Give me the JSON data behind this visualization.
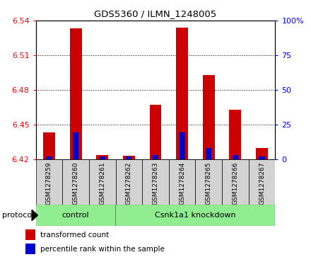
{
  "title": "GDS5360 / ILMN_1248005",
  "samples": [
    "GSM1278259",
    "GSM1278260",
    "GSM1278261",
    "GSM1278262",
    "GSM1278263",
    "GSM1278264",
    "GSM1278265",
    "GSM1278266",
    "GSM1278267"
  ],
  "red_values": [
    6.443,
    6.533,
    6.424,
    6.423,
    6.467,
    6.534,
    6.493,
    6.463,
    6.43
  ],
  "blue_values": [
    6.4225,
    6.443,
    6.4225,
    6.4225,
    6.4235,
    6.443,
    6.43,
    6.424,
    6.4225
  ],
  "baseline": 6.42,
  "ylim_min": 6.42,
  "ylim_max": 6.54,
  "y_ticks": [
    6.42,
    6.45,
    6.48,
    6.51,
    6.54
  ],
  "right_ticks": [
    0,
    25,
    50,
    75,
    100
  ],
  "right_tick_labels": [
    "0",
    "25",
    "50",
    "75",
    "100%"
  ],
  "control_color": "#90EE90",
  "knockdown_color": "#90EE90",
  "red_bar_color": "#CC0000",
  "blue_bar_color": "#0000CC",
  "bar_width": 0.45,
  "blue_bar_width": 0.22,
  "plot_bg_color": "#ffffff",
  "sample_bg_color": "#d3d3d3",
  "legend_red_label": "transformed count",
  "legend_blue_label": "percentile rank within the sample"
}
